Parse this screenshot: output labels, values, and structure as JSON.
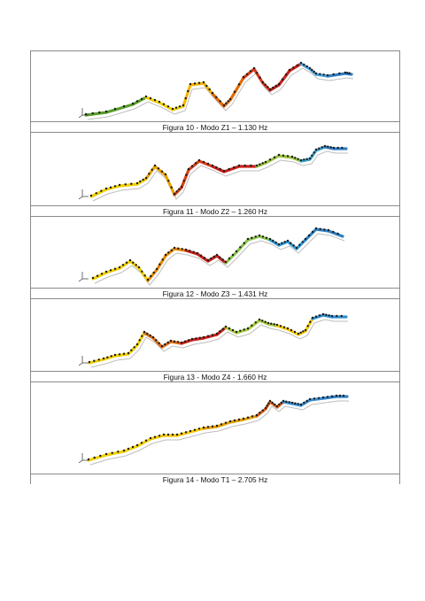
{
  "figures": [
    {
      "caption": "Figura 10 - Modo Z1 – 1.130 Hz"
    },
    {
      "caption": "Figura 11 - Modo Z2 – 1.260 Hz"
    },
    {
      "caption": "Figura 12 - Modo Z3 – 1.431 Hz"
    },
    {
      "caption": "Figura 13 - Modo Z4 - 1.660 Hz"
    },
    {
      "caption": "Figura 14 - Modo T1 – 2.705 Hz"
    }
  ]
}
